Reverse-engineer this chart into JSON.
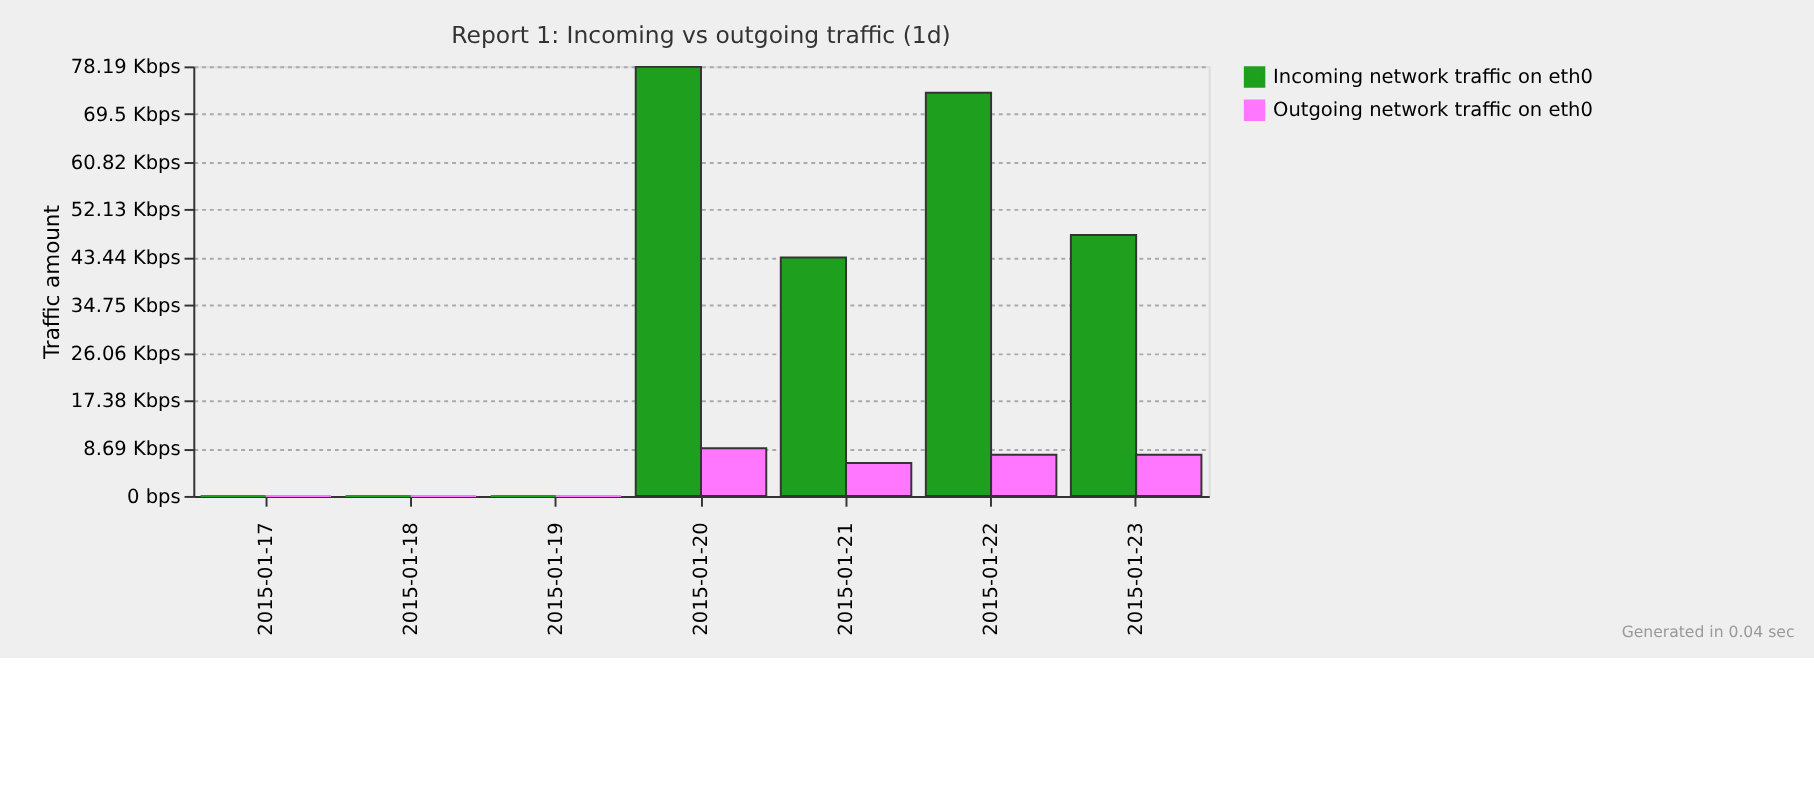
{
  "chart_data": {
    "type": "bar",
    "title": "Report 1: Incoming vs outgoing traffic (1d)",
    "ylabel": "Traffic amount",
    "categories": [
      "2015-01-17",
      "2015-01-18",
      "2015-01-19",
      "2015-01-20",
      "2015-01-21",
      "2015-01-22",
      "2015-01-23"
    ],
    "series": [
      {
        "name": "Incoming network traffic on eth0",
        "color": "#1ea01e",
        "values": [
          0,
          0,
          0,
          78.1,
          43.4,
          73.4,
          47.5
        ]
      },
      {
        "name": "Outgoing network traffic on eth0",
        "color": "#ff77ff",
        "values": [
          0,
          0,
          0,
          8.7,
          6.0,
          7.5,
          7.5
        ]
      }
    ],
    "ylim": [
      0,
      78.19
    ],
    "yticks": [
      {
        "value": 0,
        "label": "0 bps"
      },
      {
        "value": 8.69,
        "label": "8.69 Kbps"
      },
      {
        "value": 17.38,
        "label": "17.38 Kbps"
      },
      {
        "value": 26.06,
        "label": "26.06 Kbps"
      },
      {
        "value": 34.75,
        "label": "34.75 Kbps"
      },
      {
        "value": 43.44,
        "label": "43.44 Kbps"
      },
      {
        "value": 52.13,
        "label": "52.13 Kbps"
      },
      {
        "value": 60.82,
        "label": "60.82 Kbps"
      },
      {
        "value": 69.5,
        "label": "69.5 Kbps"
      },
      {
        "value": 78.19,
        "label": "78.19 Kbps"
      }
    ],
    "grid": "y",
    "legend": "top right",
    "annotations": [
      "Generated in 0.04 sec"
    ]
  }
}
